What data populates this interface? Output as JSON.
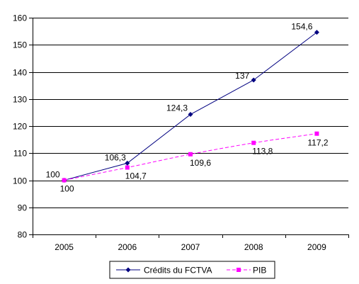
{
  "chart_data": {
    "type": "line",
    "categories": [
      "2005",
      "2006",
      "2007",
      "2008",
      "2009"
    ],
    "series": [
      {
        "name": "Crédits du FCTVA",
        "values": [
          100,
          106.3,
          124.3,
          137,
          154.6
        ],
        "labels": [
          "100",
          "106,3",
          "124,3",
          "137",
          "154,6"
        ],
        "color": "#000080",
        "marker": "diamond",
        "line": "solid"
      },
      {
        "name": "PIB",
        "values": [
          100,
          104.7,
          109.6,
          113.8,
          117.2
        ],
        "labels": [
          "100",
          "104,7",
          "109,6",
          "113,8",
          "117,2"
        ],
        "color": "#ff00ff",
        "marker": "square",
        "line": "dashed"
      }
    ],
    "ylim": [
      80,
      160
    ],
    "yticks": [
      "80",
      "90",
      "100",
      "110",
      "120",
      "130",
      "140",
      "150",
      "160"
    ],
    "grid": true,
    "legend": "bottom"
  }
}
